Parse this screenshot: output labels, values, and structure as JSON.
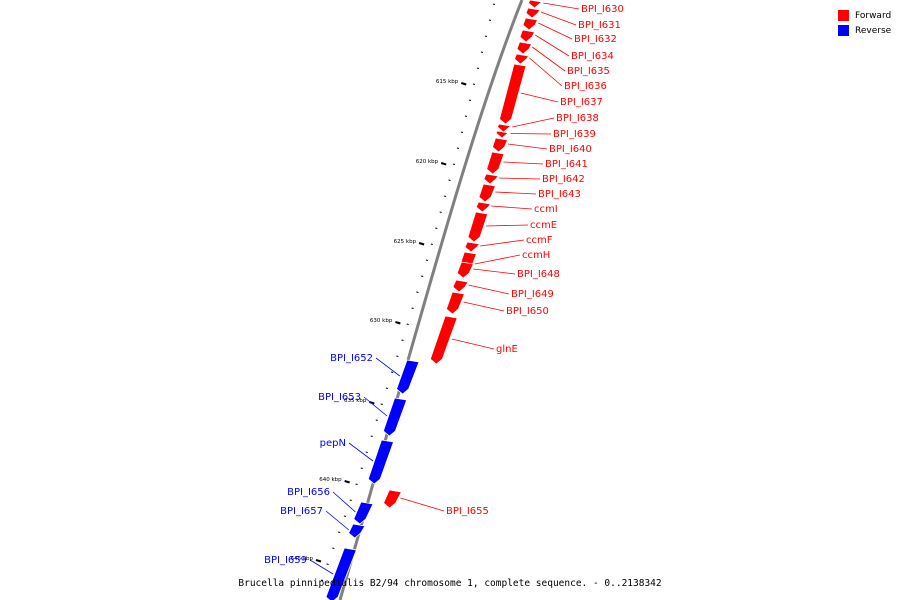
{
  "colors": {
    "forward": "#ff0000",
    "reverse": "#0000ff",
    "backbone": "#808080"
  },
  "legend": [
    {
      "label": "Forward",
      "color": "#ff0000"
    },
    {
      "label": "Reverse",
      "color": "#0000ff"
    }
  ],
  "caption": "Brucella pinnipedialis B2/94 chromosome 1, complete sequence. - 0..2138342",
  "ticks": [
    "615 kbp",
    "620 kbp",
    "625 kbp",
    "630 kbp",
    "635 kbp",
    "640 kbp",
    "645 kbp"
  ],
  "genes": [
    {
      "name": "BPI_I630",
      "strand": "forward"
    },
    {
      "name": "BPI_I631",
      "strand": "forward"
    },
    {
      "name": "BPI_I632",
      "strand": "forward"
    },
    {
      "name": "BPI_I634",
      "strand": "forward"
    },
    {
      "name": "BPI_I635",
      "strand": "forward"
    },
    {
      "name": "BPI_I636",
      "strand": "forward"
    },
    {
      "name": "BPI_I637",
      "strand": "forward"
    },
    {
      "name": "BPI_I638",
      "strand": "forward"
    },
    {
      "name": "BPI_I639",
      "strand": "forward"
    },
    {
      "name": "BPI_I640",
      "strand": "forward"
    },
    {
      "name": "BPI_I641",
      "strand": "forward"
    },
    {
      "name": "BPI_I642",
      "strand": "forward"
    },
    {
      "name": "BPI_I643",
      "strand": "forward"
    },
    {
      "name": "ccmI",
      "strand": "forward"
    },
    {
      "name": "ccmE",
      "strand": "forward"
    },
    {
      "name": "ccmF",
      "strand": "forward"
    },
    {
      "name": "ccmH",
      "strand": "forward"
    },
    {
      "name": "BPI_I648",
      "strand": "forward"
    },
    {
      "name": "BPI_I649",
      "strand": "forward"
    },
    {
      "name": "BPI_I650",
      "strand": "forward"
    },
    {
      "name": "glnE",
      "strand": "forward"
    },
    {
      "name": "BPI_I652",
      "strand": "reverse"
    },
    {
      "name": "BPI_I653",
      "strand": "reverse"
    },
    {
      "name": "pepN",
      "strand": "reverse"
    },
    {
      "name": "BPI_I655",
      "strand": "forward"
    },
    {
      "name": "BPI_I656",
      "strand": "reverse"
    },
    {
      "name": "BPI_I657",
      "strand": "reverse"
    },
    {
      "name": "BPI_I659",
      "strand": "reverse"
    }
  ]
}
